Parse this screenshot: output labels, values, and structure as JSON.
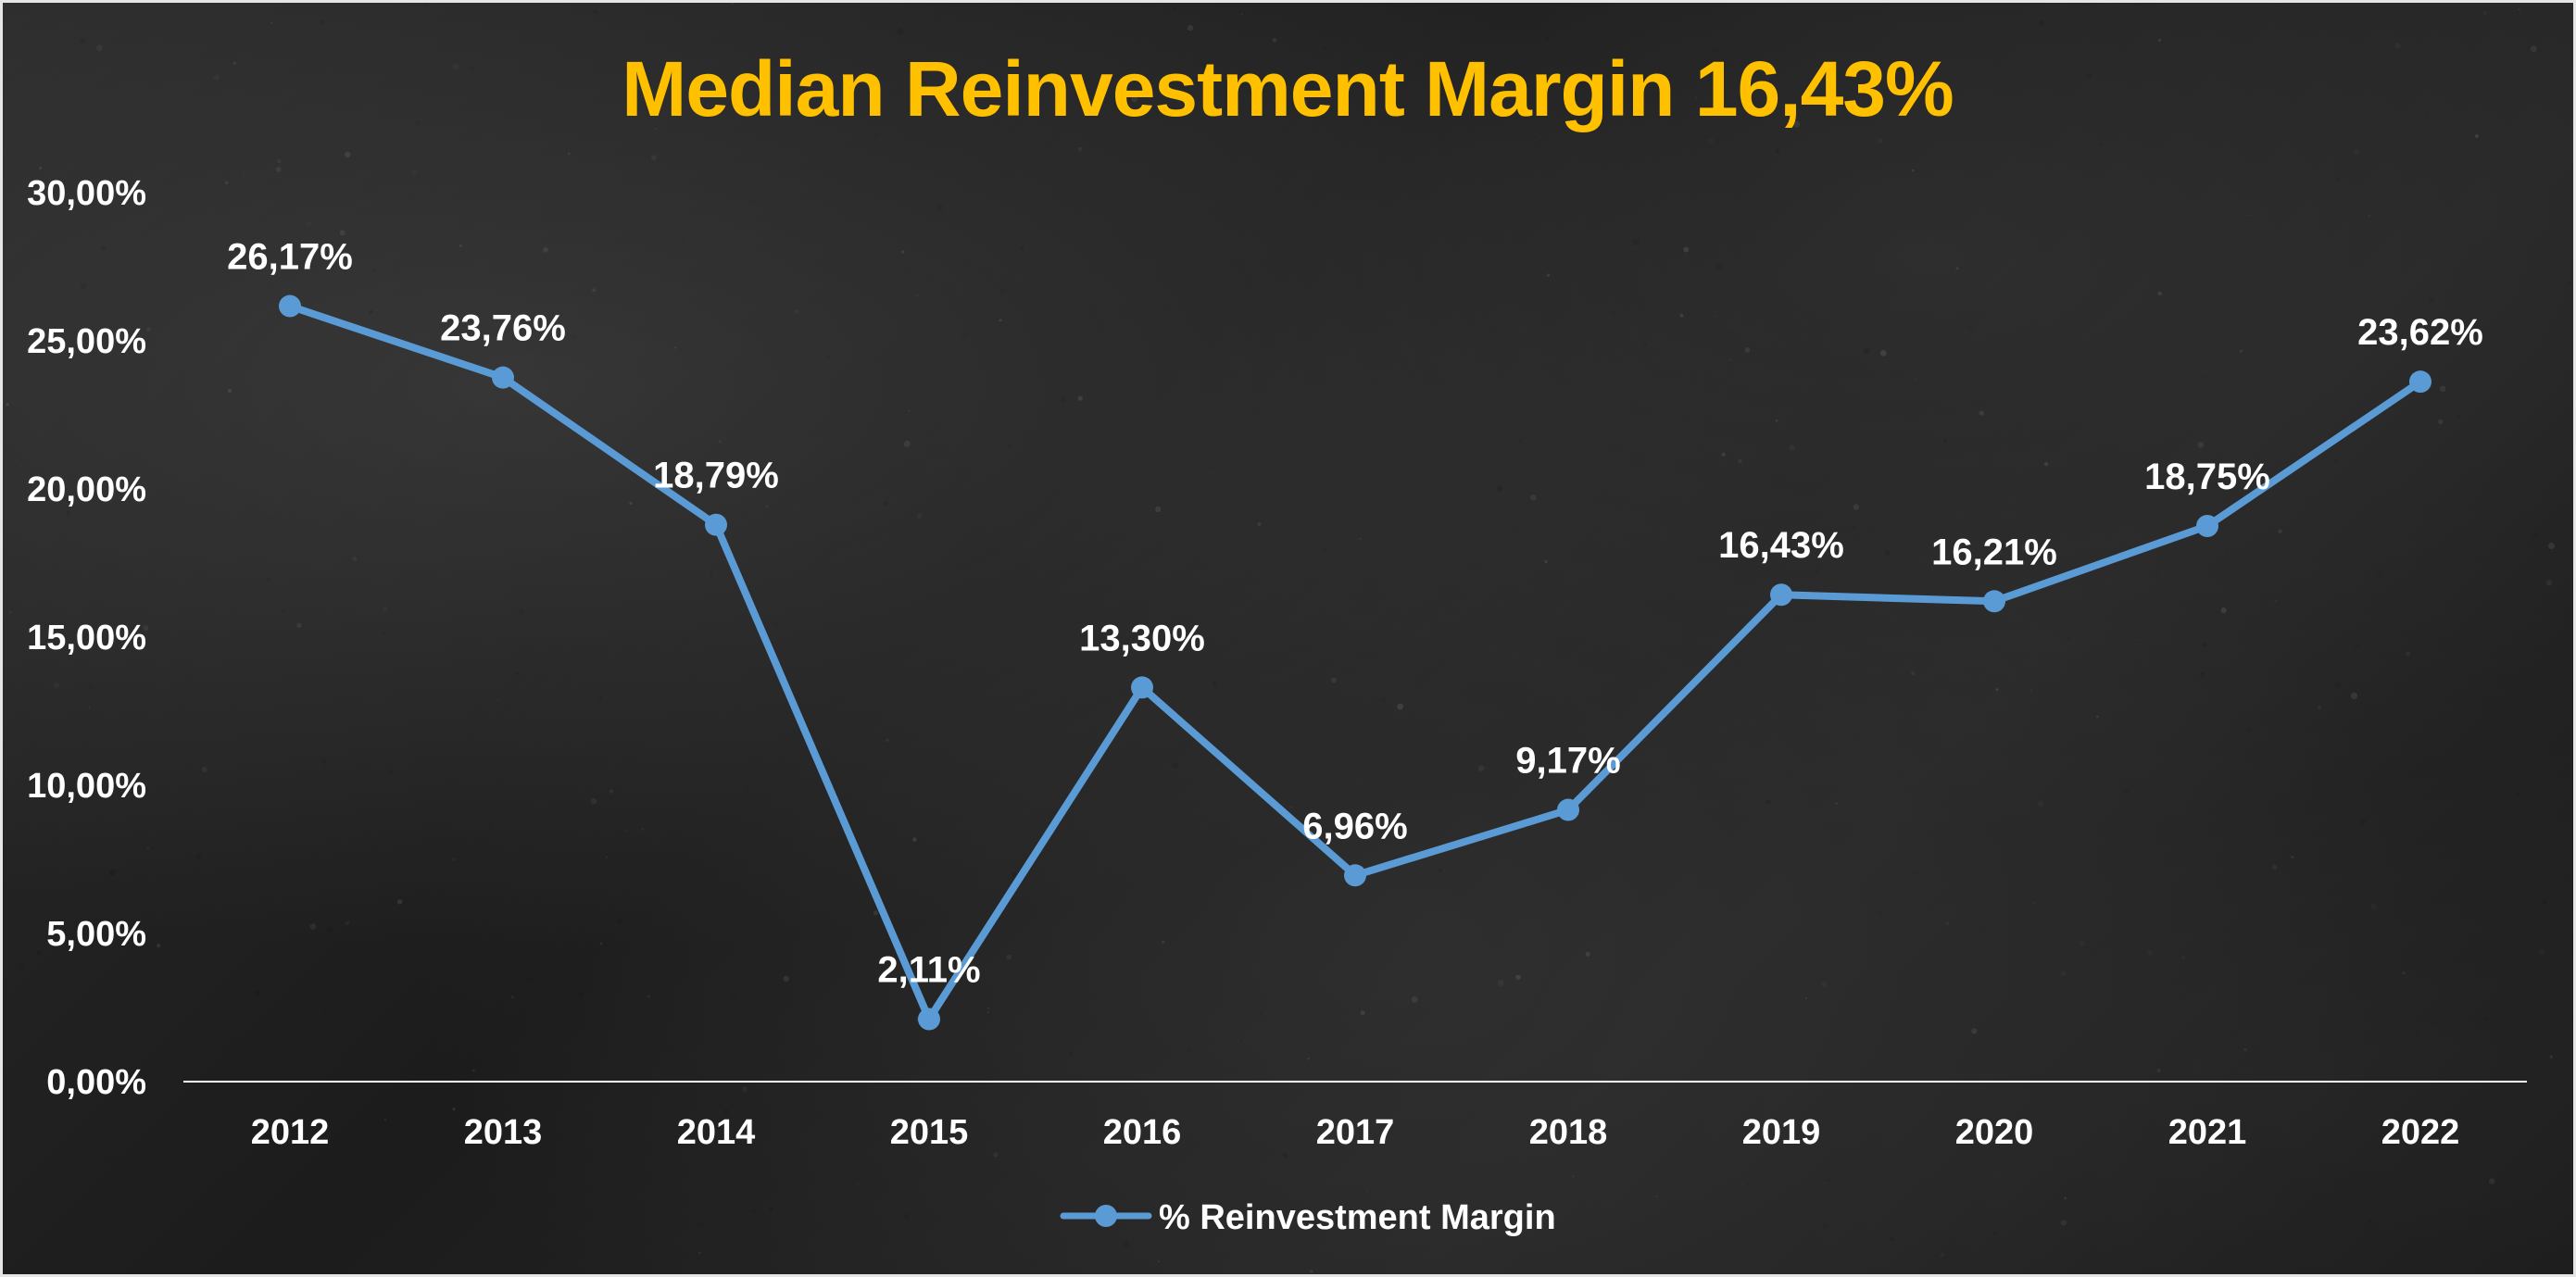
{
  "chart_data": {
    "type": "line",
    "title": "Median Reinvestment Margin 16,43%",
    "xlabel": "",
    "ylabel": "",
    "categories": [
      "2012",
      "2013",
      "2014",
      "2015",
      "2016",
      "2017",
      "2018",
      "2019",
      "2020",
      "2021",
      "2022"
    ],
    "series": [
      {
        "name": "% Reinvestment Margin",
        "values": [
          26.17,
          23.76,
          18.79,
          2.11,
          13.3,
          6.96,
          9.17,
          16.43,
          16.21,
          18.75,
          23.62
        ],
        "labels": [
          "26,17%",
          "23,76%",
          "18,79%",
          "2,11%",
          "13,30%",
          "6,96%",
          "9,17%",
          "16,43%",
          "16,21%",
          "18,75%",
          "23,62%"
        ],
        "color": "#5b9bd5"
      }
    ],
    "ylim": [
      0,
      30
    ],
    "yticks": [
      0,
      5,
      10,
      15,
      20,
      25,
      30
    ],
    "ytick_labels": [
      "0,00%",
      "5,00%",
      "10,00%",
      "15,00%",
      "20,00%",
      "25,00%",
      "30,00%"
    ],
    "grid": false,
    "legend": "bottom",
    "colors": {
      "title": "#ffc000",
      "line": "#5b9bd5",
      "text": "#ffffff",
      "axis": "#ffffff"
    }
  }
}
